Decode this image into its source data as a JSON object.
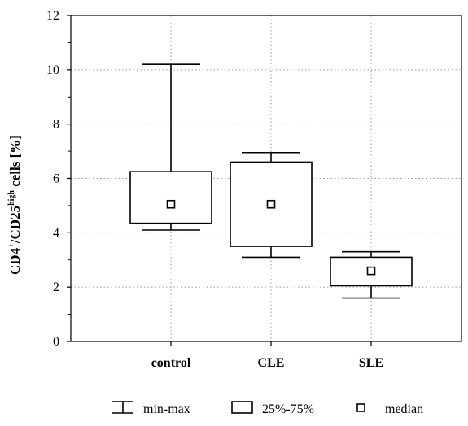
{
  "chart_data": {
    "type": "box",
    "ylabel": {
      "base": "CD4",
      "sup1": "+",
      "mid": "/CD25",
      "sup2": "high",
      "end": " cells [%]"
    },
    "ylim": [
      0,
      12
    ],
    "yticks": [
      0,
      2,
      4,
      6,
      8,
      10,
      12
    ],
    "grid": true,
    "categories": [
      "control",
      "CLE",
      "SLE"
    ],
    "boxes": [
      {
        "category": "control",
        "min": 4.1,
        "q1": 4.35,
        "median": 5.05,
        "q3": 6.25,
        "max": 10.2
      },
      {
        "category": "CLE",
        "min": 3.1,
        "q1": 3.5,
        "median": 5.05,
        "q3": 6.6,
        "max": 6.95
      },
      {
        "category": "SLE",
        "min": 1.6,
        "q1": 2.05,
        "median": 2.6,
        "q3": 3.1,
        "max": 3.3
      }
    ],
    "legend": {
      "placement": "bottom",
      "items": [
        {
          "symbol": "whisker",
          "label": "min-max"
        },
        {
          "symbol": "box",
          "label": "25%-75%"
        },
        {
          "symbol": "square",
          "label": "median"
        }
      ]
    }
  }
}
